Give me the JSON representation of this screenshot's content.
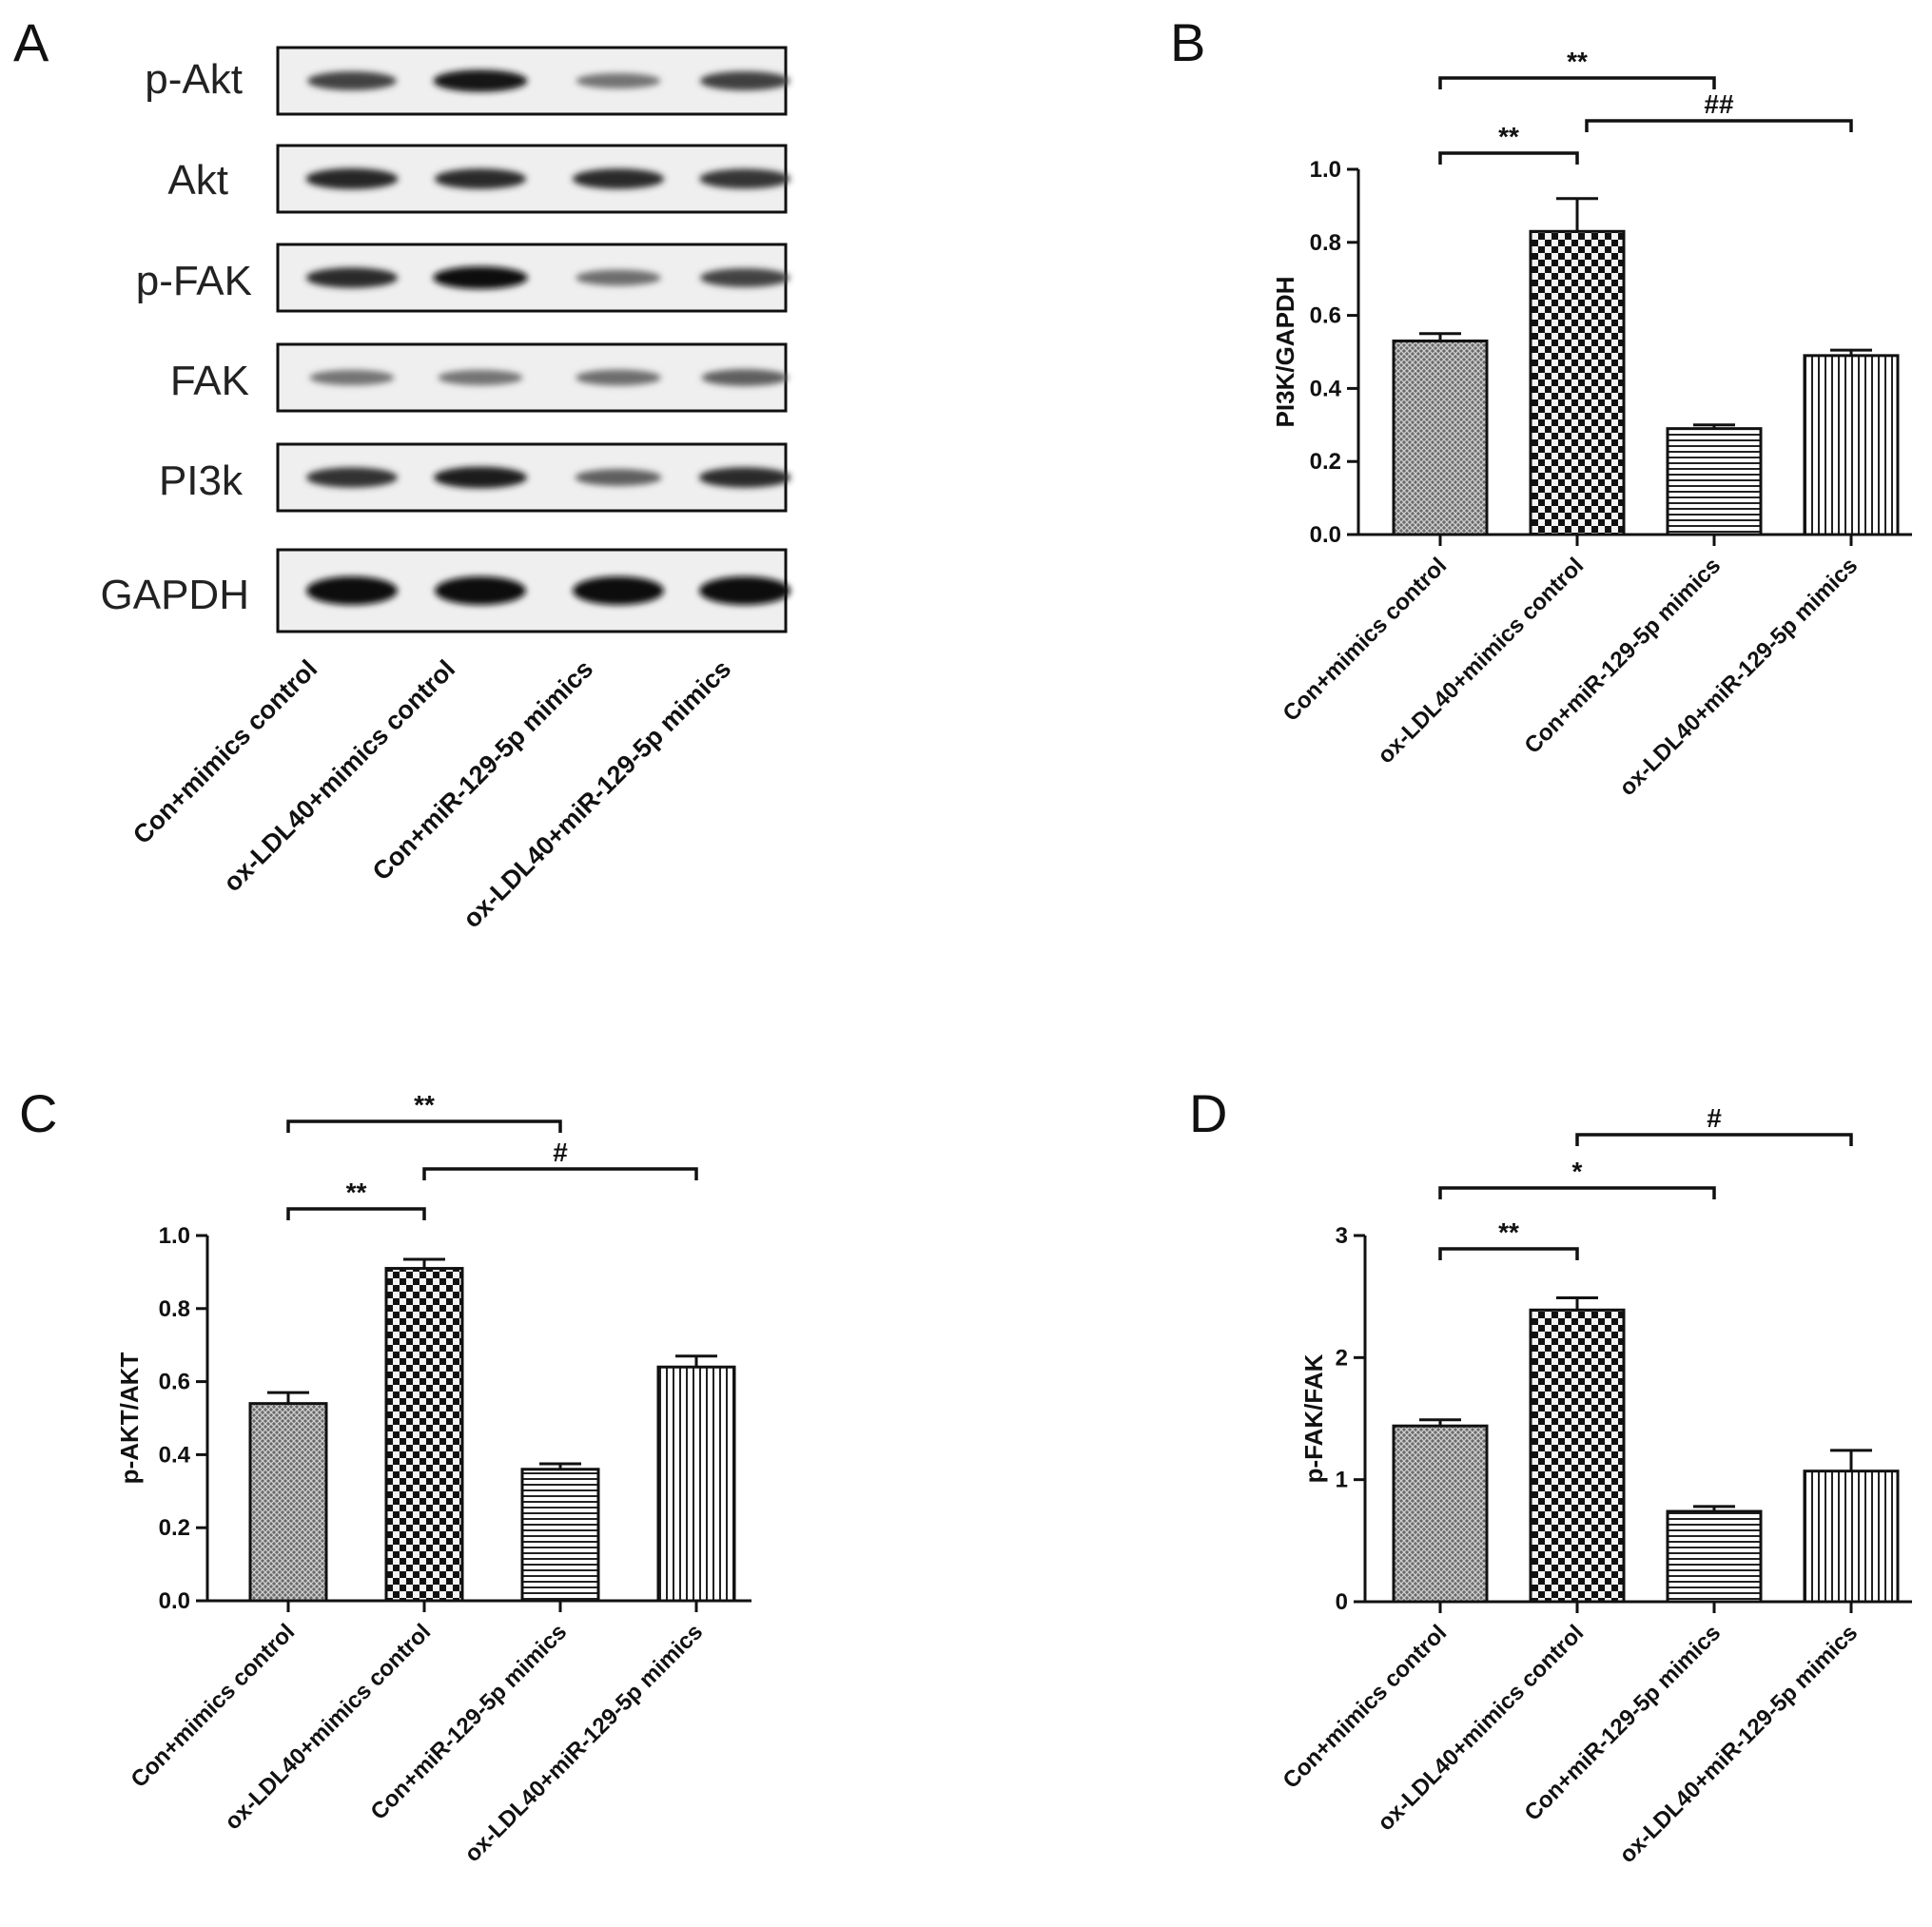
{
  "panel_letters": [
    "A",
    "B",
    "C",
    "D"
  ],
  "western_blot": {
    "rows": [
      "p-Akt",
      "Akt",
      "p-FAK",
      "FAK",
      "PI3k",
      "GAPDH"
    ],
    "lanes": [
      "Con+mimics control",
      "ox-LDL40+mimics control",
      "Con+miR-129-5p mimics",
      "ox-LDL40+miR-129-5p mimics"
    ],
    "band_intensity": [
      [
        0.7,
        0.95,
        0.45,
        0.72
      ],
      [
        0.85,
        0.82,
        0.82,
        0.78
      ],
      [
        0.82,
        0.98,
        0.48,
        0.7
      ],
      [
        0.45,
        0.45,
        0.48,
        0.55
      ],
      [
        0.8,
        0.9,
        0.55,
        0.82
      ],
      [
        1.0,
        0.98,
        0.98,
        1.0
      ]
    ]
  },
  "chart_data": [
    {
      "panel": "B",
      "type": "bar",
      "categories": [
        "Con+mimics control",
        "ox-LDL40+mimics control",
        "Con+miR-129-5p mimics",
        "ox-LDL40+miR-129-5p mimics"
      ],
      "values": [
        0.53,
        0.83,
        0.29,
        0.49
      ],
      "errors": [
        0.02,
        0.09,
        0.01,
        0.015
      ],
      "ylabel": "PI3K/GAPDH",
      "ylim": [
        0,
        1.0
      ],
      "yticks": [
        "0.0",
        "0.2",
        "0.4",
        "0.6",
        "0.8",
        "1.0"
      ],
      "significance": [
        {
          "from": 0,
          "to": 1,
          "label": "**"
        },
        {
          "from": 0,
          "to": 2,
          "label": "**"
        },
        {
          "from": 1,
          "to": 3,
          "label": "##"
        }
      ],
      "patterns": [
        "dense-grid",
        "checker",
        "horizontal",
        "vertical"
      ]
    },
    {
      "panel": "C",
      "type": "bar",
      "categories": [
        "Con+mimics control",
        "ox-LDL40+mimics control",
        "Con+miR-129-5p mimics",
        "ox-LDL40+miR-129-5p mimics"
      ],
      "values": [
        0.54,
        0.91,
        0.36,
        0.64
      ],
      "errors": [
        0.03,
        0.025,
        0.015,
        0.03
      ],
      "ylabel": "p-AKT/AKT",
      "ylim": [
        0,
        1.0
      ],
      "yticks": [
        "0.0",
        "0.2",
        "0.4",
        "0.6",
        "0.8",
        "1.0"
      ],
      "significance": [
        {
          "from": 0,
          "to": 1,
          "label": "**"
        },
        {
          "from": 0,
          "to": 2,
          "label": "**"
        },
        {
          "from": 1,
          "to": 3,
          "label": "#"
        }
      ],
      "patterns": [
        "dense-grid",
        "checker",
        "horizontal",
        "vertical"
      ]
    },
    {
      "panel": "D",
      "type": "bar",
      "categories": [
        "Con+mimics control",
        "ox-LDL40+mimics control",
        "Con+miR-129-5p mimics",
        "ox-LDL40+miR-129-5p mimics"
      ],
      "values": [
        1.44,
        2.39,
        0.74,
        1.07
      ],
      "errors": [
        0.05,
        0.1,
        0.04,
        0.17
      ],
      "ylabel": "p-FAK/FAK",
      "ylim": [
        0,
        3
      ],
      "yticks": [
        "0",
        "1",
        "2",
        "3"
      ],
      "significance": [
        {
          "from": 0,
          "to": 1,
          "label": "**"
        },
        {
          "from": 0,
          "to": 2,
          "label": "*"
        },
        {
          "from": 1,
          "to": 3,
          "label": "#"
        }
      ],
      "patterns": [
        "dense-grid",
        "checker",
        "horizontal",
        "vertical"
      ]
    }
  ]
}
